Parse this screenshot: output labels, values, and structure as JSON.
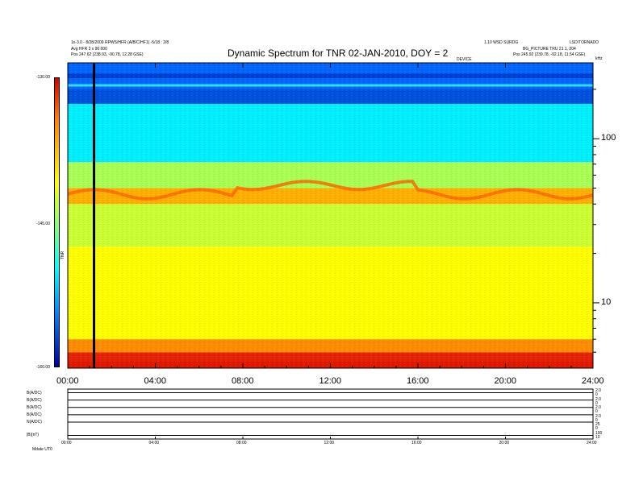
{
  "header": {
    "title": "Dynamic Spectrum for TNR 02-JAN-2010, DOY = 2",
    "left_line1": "1x-3.0 - 8/28/2009 RPWS/HFR (A/B/C/HF1) -5/18 : 2/8",
    "left_line2": "Avg HFR 3 x 96:000",
    "left_line3": "Pos 247.62 (238.93, -90.78, 12.28 GSE)",
    "right_line1": "1.10 WSD SURDG",
    "right_line2": "LSD/TORNADO",
    "right_line3": "BG_PICTURE TRU 21 1, 204",
    "right_line4": "Pos 245.92 (239.78, -92.18, 11.54 GSE)",
    "sublabel_mid": "DEVICE",
    "sublabel_right": "kHz"
  },
  "colorbar": {
    "unit_label": "TNR",
    "ticks": [
      "-130.00",
      "-145.00",
      "-160.00"
    ],
    "colors": [
      "#d40000",
      "#ff7f00",
      "#ffff00",
      "#7fff7f",
      "#00ffff",
      "#0080ff",
      "#0000a0"
    ]
  },
  "chart_data": {
    "type": "heatmap",
    "title": "Dynamic Spectrum for TNR 02-JAN-2010, DOY = 2",
    "xlabel": "",
    "ylabel": "kHz",
    "x_ticks": [
      "00:00",
      "04:00",
      "08:00",
      "12:00",
      "16:00",
      "20:00",
      "24:00"
    ],
    "x_range_hours": [
      0,
      24
    ],
    "y_scale": "log",
    "y_ticks": [
      10,
      100
    ],
    "y_range_khz": [
      4,
      290
    ],
    "z_range_db": [
      -160,
      -130
    ],
    "marker_time_hours": 1.2,
    "bands": [
      {
        "freq_khz_from": 4,
        "freq_khz_to": 5,
        "db": -130,
        "color": "#e62200"
      },
      {
        "freq_khz_from": 5,
        "freq_khz_to": 6,
        "db": -136,
        "color": "#ff8c00"
      },
      {
        "freq_khz_from": 6,
        "freq_khz_to": 22,
        "db": -140,
        "color": "#ffff00"
      },
      {
        "freq_khz_from": 22,
        "freq_khz_to": 40,
        "db": -144,
        "color": "#ccff33"
      },
      {
        "freq_khz_from": 40,
        "freq_khz_to": 50,
        "db": -139,
        "color": "#ffb000"
      },
      {
        "freq_khz_from": 50,
        "freq_khz_to": 72,
        "db": -146,
        "color": "#aaff55"
      },
      {
        "freq_khz_from": 72,
        "freq_khz_to": 175,
        "db": -150,
        "color": "#00f0ff"
      },
      {
        "freq_khz_from": 175,
        "freq_khz_to": 290,
        "db": -155,
        "color": "#0066ff"
      }
    ]
  },
  "bottom_panel": {
    "row_labels": [
      "B(A/DC)",
      "B(A/DC)",
      "B(A/DC)",
      "B(A/DC)",
      "N(A/DC)",
      "|B|(nT)"
    ],
    "right_ticks": [
      "2.0",
      "0",
      "2.0",
      "0",
      "2.0",
      "0",
      "2.0",
      "0",
      "25",
      "0",
      "100",
      "10"
    ],
    "x_ticks": [
      "00:00",
      "04:00",
      "08:00",
      "12:00",
      "16:00",
      "20:00",
      "24:00"
    ],
    "footer_label": "Mdate  UT0"
  }
}
